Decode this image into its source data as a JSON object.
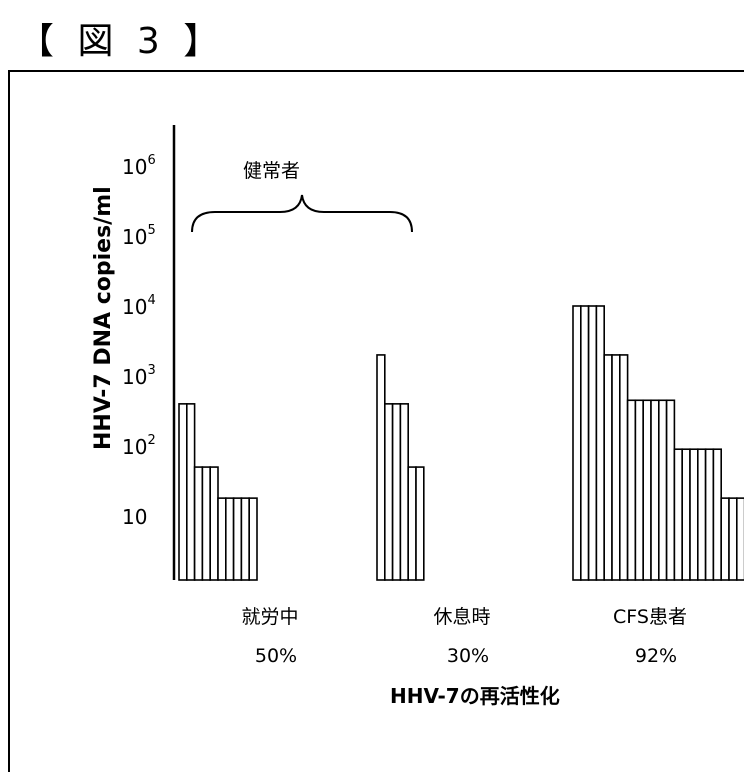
{
  "figure_label": "【 図 3 】",
  "chart_data": {
    "type": "bar",
    "title": "",
    "ylabel": "HHV-7 DNA copies/ml",
    "xlabel": "HHV-7の再活性化",
    "yscale": "log",
    "ylim": [
      1,
      1000000
    ],
    "yticks": [
      {
        "value": 10,
        "label": "10",
        "sup": ""
      },
      {
        "value": 100,
        "label": "10",
        "sup": "2"
      },
      {
        "value": 1000,
        "label": "10",
        "sup": "3"
      },
      {
        "value": 10000,
        "label": "10",
        "sup": "4"
      },
      {
        "value": 100000,
        "label": "10",
        "sup": "5"
      },
      {
        "value": 1000000,
        "label": "10",
        "sup": "6"
      }
    ],
    "bracket_label": "健常者",
    "groups": [
      {
        "name": "就労中",
        "rate": "50%",
        "values": [
          400,
          400,
          50,
          50,
          50,
          18,
          18,
          18,
          18,
          18
        ]
      },
      {
        "name": "休息時",
        "rate": "30%",
        "values": [
          2000,
          400,
          400,
          400,
          50,
          50
        ]
      },
      {
        "name": "CFS患者",
        "rate": "92%",
        "values": [
          10000,
          10000,
          10000,
          10000,
          2000,
          2000,
          2000,
          450,
          450,
          450,
          450,
          450,
          450,
          90,
          90,
          90,
          90,
          90,
          90,
          18,
          18,
          18
        ]
      }
    ]
  }
}
